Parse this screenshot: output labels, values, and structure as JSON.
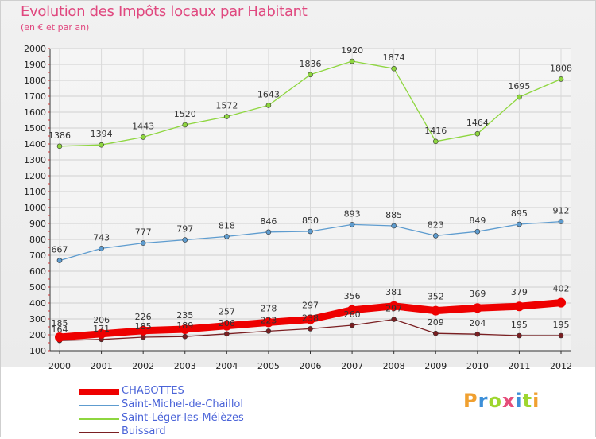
{
  "header": {
    "title": "Evolution des Impôts locaux par Habitant",
    "subtitle": "(en € et par an)"
  },
  "logo": {
    "text": "Proxiti",
    "colors": [
      "#f0a030",
      "#3d8fd8",
      "#9ed62f",
      "#e64d7a",
      "#3d8fd8",
      "#9ed62f",
      "#f0a030"
    ]
  },
  "chart_data": {
    "type": "line",
    "x": [
      "2000",
      "2001",
      "2002",
      "2003",
      "2004",
      "2005",
      "2006",
      "2007",
      "2008",
      "2009",
      "2010",
      "2011",
      "2012"
    ],
    "ylim": [
      100,
      2000
    ],
    "yticks": [
      "100",
      "200",
      "300",
      "400",
      "500",
      "600",
      "700",
      "800",
      "900",
      "1000",
      "1100",
      "1200",
      "1300",
      "1400",
      "1500",
      "1600",
      "1700",
      "1800",
      "1900",
      "2000"
    ],
    "grid": true,
    "legend_position": "bottom-left",
    "series": [
      {
        "name": "CHABOTTES",
        "color": "#ee0000",
        "values": [
          185,
          206,
          226,
          235,
          257,
          278,
          297,
          356,
          381,
          352,
          369,
          379,
          402
        ],
        "labels": [
          "185",
          "206",
          "226",
          "235",
          "257",
          "278",
          "297",
          "356",
          "381",
          "352",
          "369",
          "379",
          "402"
        ]
      },
      {
        "name": "Saint-Michel-de-Chaillol",
        "color": "#5e9ccf",
        "values": [
          667,
          743,
          777,
          797,
          818,
          846,
          850,
          893,
          885,
          823,
          849,
          895,
          912
        ],
        "labels": [
          "667",
          "743",
          "777",
          "797",
          "818",
          "846",
          "850",
          "893",
          "885",
          "823",
          "849",
          "895",
          "912"
        ]
      },
      {
        "name": "Saint-Léger-les-Mélèzes",
        "color": "#8ed63f",
        "values": [
          1386,
          1394,
          1443,
          1520,
          1572,
          1643,
          1836,
          1920,
          1874,
          1416,
          1464,
          1695,
          1808
        ],
        "labels": [
          "1386",
          "1394",
          "1443",
          "1520",
          "1572",
          "1643",
          "1836",
          "1920",
          "1874",
          "1416",
          "1464",
          "1695",
          "1808"
        ]
      },
      {
        "name": "Buissard",
        "color": "#7a1f22",
        "values": [
          164,
          171,
          185,
          189,
          206,
          223,
          238,
          260,
          297,
          209,
          204,
          195,
          195
        ],
        "labels": [
          "164",
          "171",
          "185",
          "189",
          "206",
          "223",
          "238",
          "260",
          "297",
          "209",
          "204",
          "195",
          "195"
        ]
      }
    ]
  }
}
